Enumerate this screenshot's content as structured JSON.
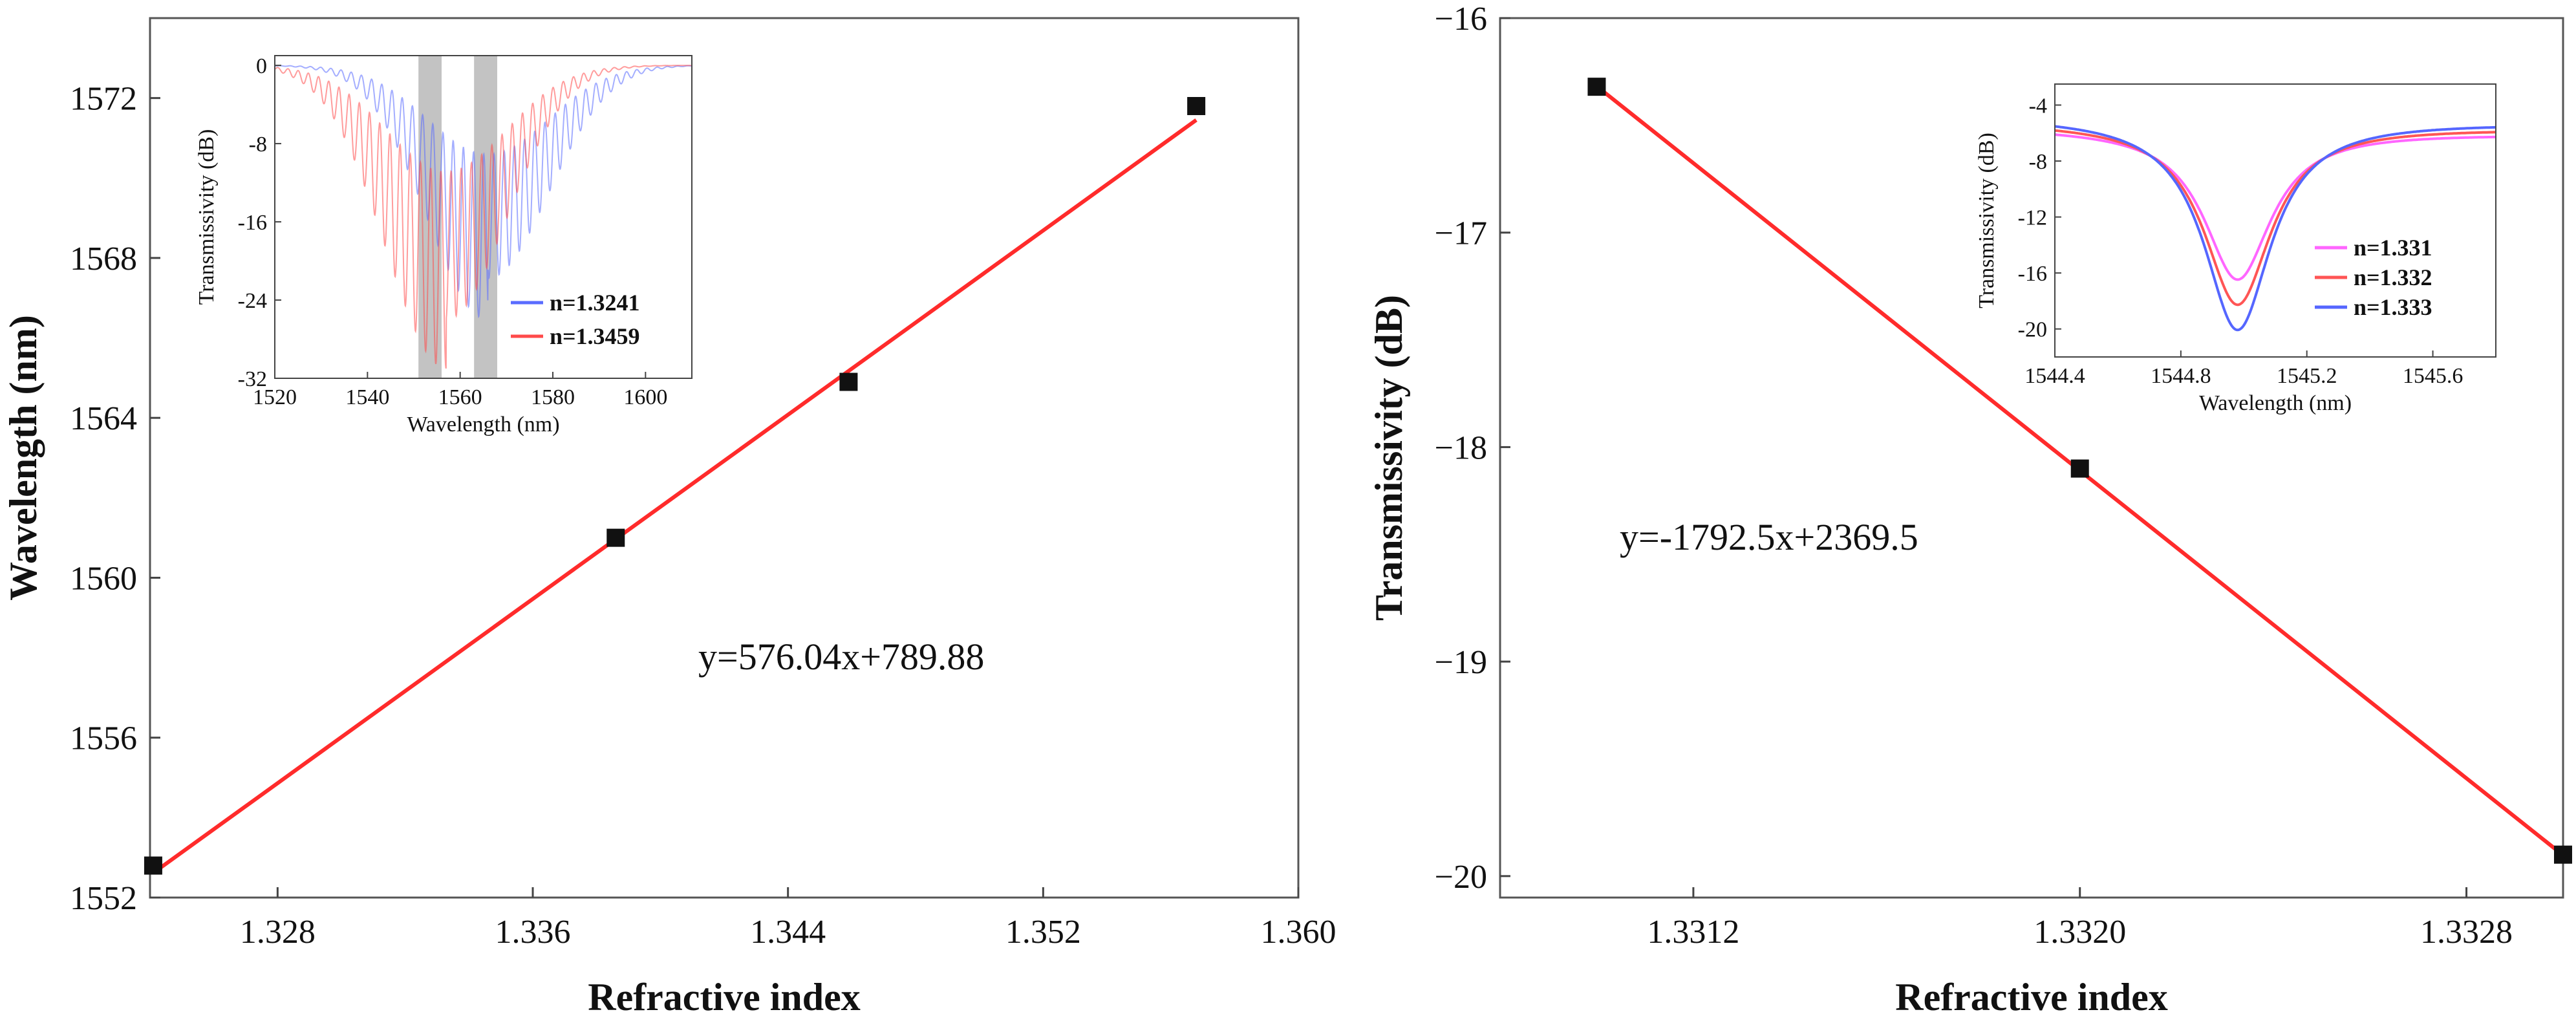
{
  "chart_data": [
    {
      "type": "scatter",
      "xlabel": "Refractive index",
      "ylabel": "Wavelength (nm)",
      "xlim": [
        1.324,
        1.36
      ],
      "ylim": [
        1552,
        1574
      ],
      "x_ticks": [
        1.328,
        1.336,
        1.344,
        1.352,
        1.36
      ],
      "y_ticks": [
        1552,
        1556,
        1560,
        1564,
        1568,
        1572
      ],
      "x_tick_labels": [
        "1.328",
        "1.336",
        "1.344",
        "1.352",
        "1.360"
      ],
      "y_tick_labels": [
        "1552",
        "1556",
        "1560",
        "1564",
        "1568",
        "1572"
      ],
      "points": [
        {
          "x": 1.3241,
          "y": 1552.8
        },
        {
          "x": 1.3386,
          "y": 1561.0
        },
        {
          "x": 1.3459,
          "y": 1564.9
        },
        {
          "x": 1.3568,
          "y": 1571.8
        }
      ],
      "fit": {
        "slope": 576.04,
        "intercept": 789.88,
        "x_range": [
          1.3241,
          1.3568
        ],
        "color": "#ff2b2b"
      },
      "annotation": "y=576.04x+789.88",
      "inset": {
        "type": "line",
        "xlabel": "Wavelength (nm)",
        "ylabel": "Transmissivity (dB)",
        "xlim": [
          1520,
          1610
        ],
        "ylim": [
          -32,
          1
        ],
        "x_ticks": [
          1520,
          1540,
          1560,
          1580,
          1600
        ],
        "y_ticks": [
          0,
          -8,
          -16,
          -24,
          -32
        ],
        "x_tick_labels": [
          "1520",
          "1540",
          "1560",
          "1580",
          "1600"
        ],
        "y_tick_labels": [
          "0",
          "-8",
          "-16",
          "-24",
          "-32"
        ],
        "highlight_bands": [
          [
            1551,
            1556
          ],
          [
            1563,
            1568
          ]
        ],
        "series": [
          {
            "name": "n=1.3241",
            "color": "#5a6cff",
            "dip_center": 1566,
            "dip_depth": -26,
            "dip_width": 13
          },
          {
            "name": "n=1.3459",
            "color": "#ff4a4a",
            "dip_center": 1557,
            "dip_depth": -31,
            "dip_width": 13
          }
        ]
      }
    },
    {
      "type": "scatter",
      "xlabel": "Refractive index",
      "ylabel": "Transmissivity (dB)",
      "xlim": [
        1.3308,
        1.333
      ],
      "ylim": [
        -20.1,
        -16
      ],
      "x_ticks": [
        1.3312,
        1.332,
        1.3328
      ],
      "y_ticks": [
        -16,
        -17,
        -18,
        -19,
        -20
      ],
      "x_tick_labels": [
        "1.3312",
        "1.3320",
        "1.3328"
      ],
      "y_tick_labels": [
        "−16",
        "−17",
        "−18",
        "−19",
        "−20"
      ],
      "points": [
        {
          "x": 1.331,
          "y": -16.32
        },
        {
          "x": 1.332,
          "y": -18.1
        },
        {
          "x": 1.333,
          "y": -19.9
        }
      ],
      "fit": {
        "slope": -1792.5,
        "intercept": 2369.5,
        "x_range": [
          1.331,
          1.333
        ],
        "color": "#ff2b2b"
      },
      "annotation": "y=-1792.5x+2369.5",
      "inset": {
        "type": "line",
        "xlabel": "Wavelength (nm)",
        "ylabel": "Transmissivity (dB)",
        "xlim": [
          1544.4,
          1545.8
        ],
        "ylim": [
          -22,
          -2.5
        ],
        "x_ticks": [
          1544.4,
          1544.8,
          1545.2,
          1545.6
        ],
        "y_ticks": [
          -4,
          -8,
          -12,
          -16,
          -20
        ],
        "x_tick_labels": [
          "1544.4",
          "1544.8",
          "1545.2",
          "1545.6"
        ],
        "y_tick_labels": [
          "-4",
          "-8",
          "-12",
          "-16",
          "-20"
        ],
        "series": [
          {
            "name": "n=1.331",
            "color": "#ff66ff",
            "min": -16.3,
            "base": -5.6
          },
          {
            "name": "n=1.332",
            "color": "#ff5555",
            "min": -18.1,
            "base": -5.2
          },
          {
            "name": "n=1.333",
            "color": "#5566ff",
            "min": -19.9,
            "base": -4.8
          }
        ]
      }
    }
  ]
}
